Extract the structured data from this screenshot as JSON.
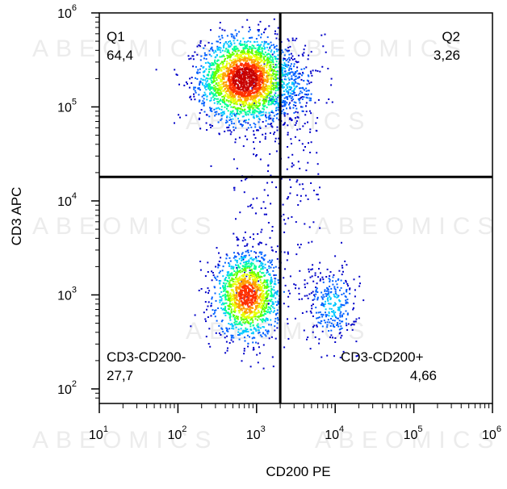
{
  "chart_data": {
    "type": "scatter",
    "subtype": "flow cytometry density dot plot",
    "xlabel": "CD200 PE",
    "ylabel": "CD3 APC",
    "x_scale": "log",
    "y_scale": "log",
    "xlim": [
      10,
      1000000
    ],
    "ylim": [
      70,
      1000000
    ],
    "x_ticks": [
      {
        "base": "10",
        "exp": "1"
      },
      {
        "base": "10",
        "exp": "2"
      },
      {
        "base": "10",
        "exp": "3"
      },
      {
        "base": "10",
        "exp": "4"
      },
      {
        "base": "10",
        "exp": "5"
      },
      {
        "base": "10",
        "exp": "6"
      }
    ],
    "y_ticks": [
      {
        "base": "10",
        "exp": "2"
      },
      {
        "base": "10",
        "exp": "3"
      },
      {
        "base": "10",
        "exp": "4"
      },
      {
        "base": "10",
        "exp": "5"
      },
      {
        "base": "10",
        "exp": "6"
      }
    ],
    "quadrant_gate": {
      "x": 2000,
      "y": 18000
    },
    "quadrants": [
      {
        "name": "Q1",
        "value": "64,4",
        "position": "top-left"
      },
      {
        "name": "Q2",
        "value": "3,26",
        "position": "top-right"
      },
      {
        "name": "CD3-CD200-",
        "value": "27,7",
        "position": "bottom-left"
      },
      {
        "name": "CD3-CD200+",
        "value": "4,66",
        "position": "bottom-right"
      }
    ],
    "populations": [
      {
        "x": 700,
        "y": 200000,
        "spread_x": 0.28,
        "spread_y": 0.22,
        "count": 2600
      },
      {
        "x": 2600,
        "y": 160000,
        "spread_x": 0.22,
        "spread_y": 0.2,
        "count": 260
      },
      {
        "x": 750,
        "y": 1000,
        "spread_x": 0.2,
        "spread_y": 0.22,
        "count": 1500
      },
      {
        "x": 9000,
        "y": 800,
        "spread_x": 0.16,
        "spread_y": 0.2,
        "count": 300
      }
    ],
    "watermark": "ABEOMICS",
    "colormap": [
      "#0000c8",
      "#0060ff",
      "#00c8ff",
      "#00ff96",
      "#64ff00",
      "#e6ff00",
      "#ffa000",
      "#ff3000",
      "#c80000"
    ],
    "grid": false,
    "legend": "none"
  }
}
